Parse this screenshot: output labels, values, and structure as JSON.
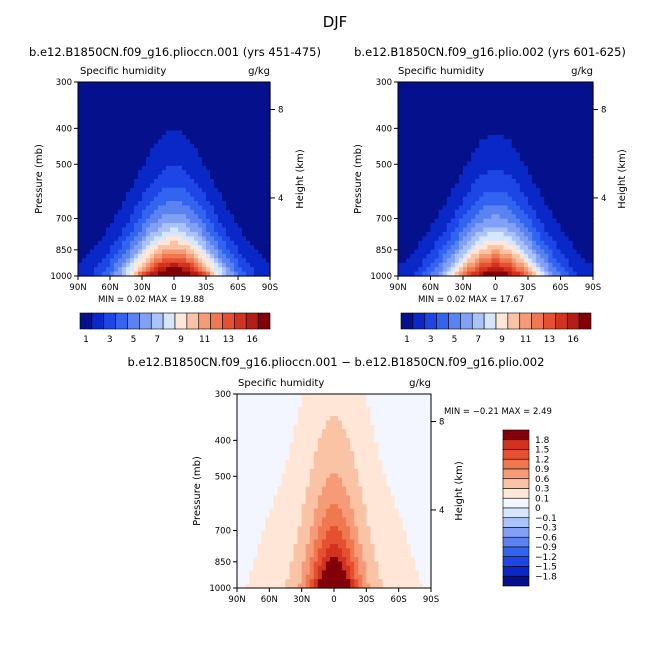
{
  "page": {
    "title": "DJF"
  },
  "chart_data": [
    {
      "type": "heatmap",
      "title": "b.e12.B1850CN.f09_g16.plioccn.001 (yrs 451-475)",
      "left_label": "Specific humidity",
      "units": "g/kg",
      "ylabel": "Pressure (mb)",
      "ylabel_right": "Height (km)",
      "y_ticks": [
        "300",
        "400",
        "500",
        "700",
        "850",
        "1000"
      ],
      "height_ticks": [
        "8",
        "4"
      ],
      "x_ticks": [
        "90N",
        "60N",
        "30N",
        "0",
        "30S",
        "60S",
        "90S"
      ],
      "min": 0.02,
      "max": 19.88,
      "stats_text": "MIN =   0.02   MAX =  19.88",
      "field_peak": 17.5
    },
    {
      "type": "heatmap",
      "title": "b.e12.B1850CN.f09_g16.plio.002 (yrs 601-625)",
      "left_label": "Specific humidity",
      "units": "g/kg",
      "ylabel": "Pressure (mb)",
      "ylabel_right": "Height (km)",
      "y_ticks": [
        "300",
        "400",
        "500",
        "700",
        "850",
        "1000"
      ],
      "height_ticks": [
        "8",
        "4"
      ],
      "x_ticks": [
        "90N",
        "60N",
        "30N",
        "0",
        "30S",
        "60S",
        "90S"
      ],
      "min": 0.02,
      "max": 17.67,
      "stats_text": "MIN =   0.02   MAX =  17.67",
      "field_peak": 16.3
    },
    {
      "type": "heatmap",
      "title": "b.e12.B1850CN.f09_g16.plioccn.001 − b.e12.B1850CN.f09_g16.plio.002",
      "left_label": "Specific humidity",
      "units": "g/kg",
      "ylabel": "Pressure (mb)",
      "ylabel_right": "Height (km)",
      "y_ticks": [
        "300",
        "400",
        "500",
        "700",
        "850",
        "1000"
      ],
      "height_ticks": [
        "8",
        "4"
      ],
      "x_ticks": [
        "90N",
        "60N",
        "30N",
        "0",
        "30S",
        "60S",
        "90S"
      ],
      "min": -0.21,
      "max": 2.49,
      "stats_text": "MIN =  −0.21   MAX =    2.49",
      "field_peak": 2.4
    }
  ],
  "colorbars": {
    "absolute": {
      "orientation": "horizontal",
      "levels": [
        0,
        1,
        2,
        3,
        4,
        5,
        6,
        7,
        8,
        9,
        10,
        11,
        12,
        13,
        14,
        15,
        16
      ],
      "labels": [
        "1",
        "3",
        "5",
        "7",
        "9",
        "11",
        "13",
        "16"
      ],
      "colors": [
        "#04108c",
        "#0a28c8",
        "#1e46e6",
        "#3264f0",
        "#5a82f0",
        "#82a0f5",
        "#aac3fa",
        "#d7e6ff",
        "#ffe6d7",
        "#fac3a5",
        "#f59b78",
        "#f07850",
        "#e65032",
        "#d2321e",
        "#b41e14",
        "#82000a"
      ]
    },
    "difference": {
      "orientation": "vertical",
      "labels": [
        "1.8",
        "1.5",
        "1.2",
        "0.9",
        "0.6",
        "0.3",
        "0.1",
        "0",
        "−0.1",
        "−0.3",
        "−0.6",
        "−0.9",
        "−1.2",
        "−1.5",
        "−1.8"
      ],
      "levels": [
        -2.1,
        -1.8,
        -1.5,
        -1.2,
        -0.9,
        -0.6,
        -0.3,
        -0.1,
        0,
        0.1,
        0.3,
        0.6,
        0.9,
        1.2,
        1.5,
        1.8,
        2.1
      ],
      "colors": [
        "#04108c",
        "#0a28c8",
        "#1e46e6",
        "#3264f0",
        "#5a82f0",
        "#82a0f5",
        "#aac3fa",
        "#d7e6ff",
        "#f4f6ff",
        "#ffe6d7",
        "#fac3a5",
        "#f59b78",
        "#f07850",
        "#e65032",
        "#d2321e",
        "#82000a"
      ]
    }
  }
}
